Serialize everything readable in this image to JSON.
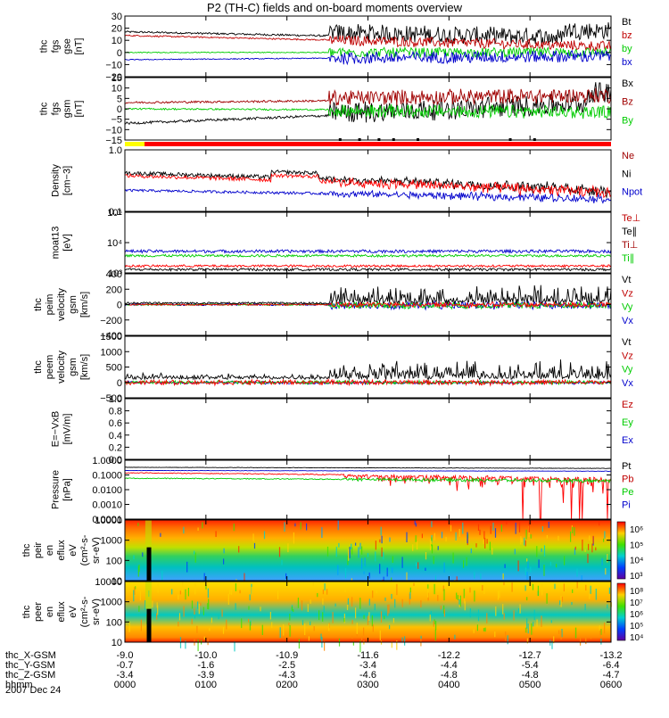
{
  "title": "P2 (TH-C) fields and on-board moments overview",
  "orbit": {
    "rows": [
      {
        "label": "thc_X-GSM",
        "values": [
          "-9.0",
          "-10.0",
          "-10.9",
          "-11.6",
          "-12.2",
          "-12.7",
          "-13.2"
        ]
      },
      {
        "label": "thc_Y-GSM",
        "values": [
          "-0.7",
          "-1.6",
          "-2.5",
          "-3.4",
          "-4.4",
          "-5.4",
          "-6.4"
        ]
      },
      {
        "label": "thc_Z-GSM",
        "values": [
          "-3.4",
          "-3.9",
          "-4.3",
          "-4.6",
          "-4.8",
          "-4.8",
          "-4.7"
        ]
      },
      {
        "label": "hhmm",
        "values": [
          "0000",
          "0100",
          "0200",
          "0300",
          "0400",
          "0500",
          "0600"
        ]
      }
    ],
    "date": "2007 Dec 24"
  },
  "chart_data": [
    {
      "id": "fgs_gse",
      "type": "line",
      "ylabel": [
        "thc",
        "fgs",
        "gse",
        "[nT]"
      ],
      "yticks": [
        "30",
        "20",
        "10",
        "0",
        "−10",
        "−20"
      ],
      "ylim": [
        -20,
        30
      ],
      "legend": [
        {
          "name": "Bt",
          "color": "#000000"
        },
        {
          "name": "bz",
          "color": "#c00000"
        },
        {
          "name": "by",
          "color": "#00cc00"
        },
        {
          "name": "bx",
          "color": "#0000cc"
        }
      ]
    },
    {
      "id": "fgs_gsm",
      "type": "line",
      "ylabel": [
        "thc",
        "fgs",
        "gsm",
        "[nT]"
      ],
      "yticks": [
        "15",
        "10",
        "5",
        "0",
        "−5",
        "−10",
        "−15"
      ],
      "ylim": [
        -15,
        15
      ],
      "legend": [
        {
          "name": "Bx",
          "color": "#000000"
        },
        {
          "name": "Bz",
          "color": "#a00000"
        },
        {
          "name": "By",
          "color": "#00cc00"
        }
      ]
    },
    {
      "id": "density",
      "type": "line",
      "ylabel": [
        "Density",
        "[cm−3]"
      ],
      "yticks": [
        "1.0",
        "0.1"
      ],
      "scale": "log",
      "ylim": [
        0.1,
        1.0
      ],
      "legend": [
        {
          "name": "Ne",
          "color": "#a00000"
        },
        {
          "name": "Ni",
          "color": "#000000"
        },
        {
          "name": "Npot",
          "color": "#0000cc"
        }
      ]
    },
    {
      "id": "temperature",
      "type": "line",
      "ylabel": [
        "moat13",
        "[eV]"
      ],
      "yticks": [
        "10⁵",
        "10⁴",
        "10³"
      ],
      "scale": "log",
      "ylim": [
        1000,
        100000
      ],
      "legend": [
        {
          "name": "Te⊥",
          "color": "#c00000"
        },
        {
          "name": "Te∥",
          "color": "#000000"
        },
        {
          "name": "Ti⊥",
          "color": "#a00000"
        },
        {
          "name": "Ti∥",
          "color": "#00cc00"
        }
      ]
    },
    {
      "id": "peim_velocity",
      "type": "line",
      "ylabel": [
        "thc",
        "peim",
        "velocity",
        "gsm",
        "[km/s]"
      ],
      "yticks": [
        "400",
        "200",
        "0",
        "−200",
        "−400"
      ],
      "ylim": [
        -400,
        400
      ],
      "legend": [
        {
          "name": "Vt",
          "color": "#000000"
        },
        {
          "name": "Vz",
          "color": "#c00000"
        },
        {
          "name": "Vy",
          "color": "#00cc00"
        },
        {
          "name": "Vx",
          "color": "#0000cc"
        }
      ]
    },
    {
      "id": "peem_velocity",
      "type": "line",
      "ylabel": [
        "thc",
        "peem",
        "velocity",
        "gsm",
        "[km/s]"
      ],
      "yticks": [
        "1500",
        "1000",
        "500",
        "0",
        "−500"
      ],
      "ylim": [
        -500,
        1500
      ],
      "legend": [
        {
          "name": "Vt",
          "color": "#000000"
        },
        {
          "name": "Vz",
          "color": "#c00000"
        },
        {
          "name": "Vy",
          "color": "#00cc00"
        },
        {
          "name": "Vx",
          "color": "#0000cc"
        }
      ]
    },
    {
      "id": "efield",
      "type": "line",
      "ylabel": [
        "E=−VxB",
        "[mV/m]"
      ],
      "yticks": [
        "1.0",
        "0.8",
        "0.6",
        "0.4",
        "0.2",
        "0.0"
      ],
      "ylim": [
        0,
        1
      ],
      "legend": [
        {
          "name": "Ez",
          "color": "#c00000"
        },
        {
          "name": "Ey",
          "color": "#00cc00"
        },
        {
          "name": "Ex",
          "color": "#0000cc"
        }
      ]
    },
    {
      "id": "pressure",
      "type": "line",
      "ylabel": [
        "Pressure",
        "[nPa]"
      ],
      "yticks": [
        "1.0000",
        "0.1000",
        "0.0100",
        "0.0010",
        "0.0001"
      ],
      "scale": "log",
      "ylim": [
        0.0001,
        1
      ],
      "legend": [
        {
          "name": "Pt",
          "color": "#000000"
        },
        {
          "name": "Pb",
          "color": "#c00000"
        },
        {
          "name": "Pe",
          "color": "#00cc00"
        },
        {
          "name": "Pi",
          "color": "#0000cc"
        }
      ]
    },
    {
      "id": "peir_spec",
      "type": "heatmap",
      "ylabel": [
        "thc",
        "peir",
        "en",
        "eflux",
        "eV",
        "(cm²-s-",
        "sr-eV)"
      ],
      "yticks": [
        "10000",
        "1000",
        "100",
        "10"
      ],
      "scale": "log",
      "colorbar_ticks": [
        "10⁶",
        "10⁵",
        "10⁴",
        "10³"
      ]
    },
    {
      "id": "peer_spec",
      "type": "heatmap",
      "ylabel": [
        "thc",
        "peer",
        "en",
        "eflux",
        "eV",
        "(cm²-s-",
        "sr-eV)"
      ],
      "yticks": [
        "10000",
        "1000",
        "100",
        "10"
      ],
      "scale": "log",
      "colorbar_ticks": [
        "10⁸",
        "10⁷",
        "10⁶",
        "10⁵",
        "10⁴"
      ]
    }
  ]
}
